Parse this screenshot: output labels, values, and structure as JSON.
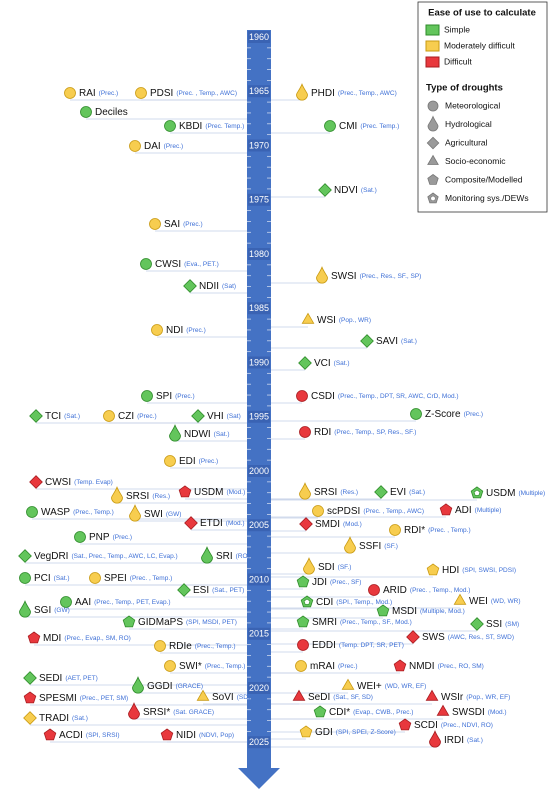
{
  "legend": {
    "ease_title": "Ease of use to calculate",
    "ease": [
      "Simple",
      "Moderately difficult",
      "Difficult"
    ],
    "type_title": "Type of droughts",
    "types": [
      "Meteorological",
      "Hydrological",
      "Agricultural",
      "Socio-economic",
      "Composite/Modelled",
      "Monitoring sys./DEWs"
    ]
  },
  "timeline": {
    "years": [
      1960,
      1965,
      1970,
      1975,
      1980,
      1985,
      1990,
      1995,
      2000,
      2005,
      2010,
      2015,
      2020,
      2025
    ]
  },
  "indices": [
    {
      "name": "RAI",
      "inputs": "(Prec.)",
      "ease": "Moderately difficult",
      "type": "Meteorological"
    },
    {
      "name": "PDSI",
      "inputs": "(Prec. , Temp., AWC)",
      "ease": "Moderately difficult",
      "type": "Meteorological"
    },
    {
      "name": "Deciles",
      "ease": "Simple",
      "type": "Meteorological"
    },
    {
      "name": "KBDI",
      "inputs": "(Prec. Temp.)",
      "ease": "Simple",
      "type": "Meteorological"
    },
    {
      "name": "DAI",
      "inputs": "(Prec.)",
      "ease": "Moderately difficult",
      "type": "Meteorological"
    },
    {
      "name": "SAI",
      "inputs": "(Prec.)",
      "ease": "Moderately difficult",
      "type": "Meteorological"
    },
    {
      "name": "CWSI",
      "inputs": "(Eva., PET.)",
      "ease": "Simple",
      "type": "Meteorological"
    },
    {
      "name": "NDII",
      "inputs": "(Sat)",
      "ease": "Simple",
      "type": "Agricultural"
    },
    {
      "name": "NDI",
      "inputs": "(Prec.)",
      "ease": "Moderately difficult",
      "type": "Meteorological"
    },
    {
      "name": "SPI",
      "inputs": "(Prec.)",
      "ease": "Simple",
      "type": "Meteorological"
    },
    {
      "name": "TCI",
      "inputs": "(Sat.)",
      "ease": "Simple",
      "type": "Agricultural"
    },
    {
      "name": "CZI",
      "inputs": "(Prec.)",
      "ease": "Moderately difficult",
      "type": "Meteorological"
    },
    {
      "name": "VHI",
      "inputs": "(Sat)",
      "ease": "Simple",
      "type": "Agricultural"
    },
    {
      "name": "NDWI",
      "inputs": "(Sat.)",
      "ease": "Simple",
      "type": "Hydrological"
    },
    {
      "name": "EDI",
      "inputs": "(Prec.)",
      "ease": "Moderately difficult",
      "type": "Meteorological"
    },
    {
      "name": "CWSI",
      "inputs": "(Temp. Evap)",
      "ease": "Difficult",
      "type": "Agricultural"
    },
    {
      "name": "SRSI",
      "inputs": "(Res.)",
      "ease": "Moderately difficult",
      "type": "Hydrological"
    },
    {
      "name": "USDM",
      "inputs": "(Mod.)",
      "ease": "Difficult",
      "type": "Composite/Modelled"
    },
    {
      "name": "WASP",
      "inputs": "(Prec., Temp.)",
      "ease": "Simple",
      "type": "Meteorological"
    },
    {
      "name": "SWI",
      "inputs": "(GW)",
      "ease": "Moderately difficult",
      "type": "Hydrological"
    },
    {
      "name": "ETDI",
      "inputs": "(Mod.)",
      "ease": "Difficult",
      "type": "Agricultural"
    },
    {
      "name": "PNP",
      "inputs": "(Prec.)",
      "ease": "Simple",
      "type": "Meteorological"
    },
    {
      "name": "VegDRI",
      "inputs": "(Sat., Prec., Temp., AWC, LC, Evap.)",
      "ease": "Simple",
      "type": "Agricultural"
    },
    {
      "name": "SRI",
      "inputs": "(RO)",
      "ease": "Simple",
      "type": "Hydrological"
    },
    {
      "name": "PCI",
      "inputs": "(Sat.)",
      "ease": "Simple",
      "type": "Meteorological"
    },
    {
      "name": "SPEI",
      "inputs": "(Prec. , Temp.)",
      "ease": "Moderately difficult",
      "type": "Meteorological"
    },
    {
      "name": "ESI",
      "inputs": "(Sat., PET)",
      "ease": "Simple",
      "type": "Agricultural"
    },
    {
      "name": "AAI",
      "inputs": "(Prec., Temp., PET, Evap.)",
      "ease": "Simple",
      "type": "Meteorological"
    },
    {
      "name": "SGI",
      "inputs": "(GW)",
      "ease": "Simple",
      "type": "Hydrological"
    },
    {
      "name": "GIDMaPS",
      "inputs": "(SPI, MSDI, PET)",
      "ease": "Simple",
      "type": "Composite/Modelled"
    },
    {
      "name": "MDI",
      "inputs": "(Prec., Evap., SM, RO)",
      "ease": "Difficult",
      "type": "Composite/Modelled"
    },
    {
      "name": "RDIe",
      "inputs": "(Prec., Temp.)",
      "ease": "Moderately difficult",
      "type": "Meteorological"
    },
    {
      "name": "SWI*",
      "inputs": "(Prec., Temp.)",
      "ease": "Moderately difficult",
      "type": "Meteorological"
    },
    {
      "name": "SEDI",
      "inputs": "(AET, PET)",
      "ease": "Simple",
      "type": "Agricultural"
    },
    {
      "name": "GGDI",
      "inputs": "(GRACE)",
      "ease": "Simple",
      "type": "Hydrological"
    },
    {
      "name": "SPESMI",
      "inputs": "(Prec., PET, SM)",
      "ease": "Difficult",
      "type": "Composite/Modelled"
    },
    {
      "name": "SoVI",
      "inputs": "(SD)",
      "ease": "Moderately difficult",
      "type": "Socio-economic"
    },
    {
      "name": "SRSI*",
      "inputs": "(Sat. GRACE)",
      "ease": "Difficult",
      "type": "Hydrological"
    },
    {
      "name": "TRADI",
      "inputs": "(Sat.)",
      "ease": "Moderately difficult",
      "type": "Agricultural"
    },
    {
      "name": "ACDI",
      "inputs": "(SPI, SRSI)",
      "ease": "Difficult",
      "type": "Composite/Modelled"
    },
    {
      "name": "NIDI",
      "inputs": "(NDVI, Pop)",
      "ease": "Difficult",
      "type": "Composite/Modelled"
    },
    {
      "name": "PHDI",
      "inputs": "(Prec., Temp., AWC)",
      "ease": "Moderately difficult",
      "type": "Hydrological"
    },
    {
      "name": "CMI",
      "inputs": "(Prec. Temp.)",
      "ease": "Simple",
      "type": "Meteorological"
    },
    {
      "name": "NDVI",
      "inputs": "(Sat.)",
      "ease": "Simple",
      "type": "Agricultural"
    },
    {
      "name": "SWSI",
      "inputs": "(Prec., Res., SF., SP)",
      "ease": "Moderately difficult",
      "type": "Hydrological"
    },
    {
      "name": "WSI",
      "inputs": "(Pop., WR)",
      "ease": "Moderately difficult",
      "type": "Socio-economic"
    },
    {
      "name": "SAVI",
      "inputs": "(Sat.)",
      "ease": "Simple",
      "type": "Agricultural"
    },
    {
      "name": "VCI",
      "inputs": "(Sat.)",
      "ease": "Simple",
      "type": "Agricultural"
    },
    {
      "name": "CSDI",
      "inputs": "(Prec., Temp., DPT, SR, AWC, CrD, Mod.)",
      "ease": "Difficult",
      "type": "Meteorological"
    },
    {
      "name": "Z-Score",
      "inputs": "(Prec.)",
      "ease": "Simple",
      "type": "Meteorological"
    },
    {
      "name": "RDI",
      "inputs": "(Prec., Temp., SP, Res., SF.)",
      "ease": "Difficult",
      "type": "Meteorological"
    },
    {
      "name": "SRSI",
      "inputs": "(Res.)",
      "ease": "Moderately difficult",
      "type": "Hydrological"
    },
    {
      "name": "EVI",
      "inputs": "(Sat.)",
      "ease": "Simple",
      "type": "Agricultural"
    },
    {
      "name": "USDM",
      "inputs": "(Multiple)",
      "ease": "Simple",
      "type": "Monitoring sys./DEWs"
    },
    {
      "name": "scPDSI",
      "inputs": "(Prec. , Temp., AWC)",
      "ease": "Moderately difficult",
      "type": "Meteorological"
    },
    {
      "name": "ADI",
      "inputs": "(Multiple)",
      "ease": "Difficult",
      "type": "Composite/Modelled"
    },
    {
      "name": "SMDI",
      "inputs": "(Mod.)",
      "ease": "Difficult",
      "type": "Agricultural"
    },
    {
      "name": "RDI*",
      "inputs": "(Prec. , Temp.)",
      "ease": "Moderately difficult",
      "type": "Meteorological"
    },
    {
      "name": "SSFI",
      "inputs": "(SF.)",
      "ease": "Moderately difficult",
      "type": "Hydrological"
    },
    {
      "name": "SDI",
      "inputs": "(SF.)",
      "ease": "Moderately difficult",
      "type": "Hydrological"
    },
    {
      "name": "HDI",
      "inputs": "(SPI, SWSI, PDSI)",
      "ease": "Moderately difficult",
      "type": "Composite/Modelled"
    },
    {
      "name": "JDI",
      "inputs": "(Prec., SF)",
      "ease": "Simple",
      "type": "Composite/Modelled"
    },
    {
      "name": "ARID",
      "inputs": "(Prec. , Temp., Mod.)",
      "ease": "Difficult",
      "type": "Meteorological"
    },
    {
      "name": "CDI",
      "inputs": "(SPI., Temp., Mod.)",
      "ease": "Simple",
      "type": "Monitoring sys./DEWs"
    },
    {
      "name": "WEI",
      "inputs": "(WD, WR)",
      "ease": "Moderately difficult",
      "type": "Socio-economic"
    },
    {
      "name": "MSDI",
      "inputs": "(Multiple, Mod.)",
      "ease": "Simple",
      "type": "Composite/Modelled"
    },
    {
      "name": "SMRI",
      "inputs": "(Prec., Temp., SF., Mod.)",
      "ease": "Simple",
      "type": "Composite/Modelled"
    },
    {
      "name": "SSI",
      "inputs": "(SM)",
      "ease": "Simple",
      "type": "Agricultural"
    },
    {
      "name": "EDDI",
      "inputs": "(Temp. DPT, SR, PET)",
      "ease": "Difficult",
      "type": "Meteorological"
    },
    {
      "name": "SWS",
      "inputs": "(AWC, Res., ST, SWD)",
      "ease": "Difficult",
      "type": "Agricultural"
    },
    {
      "name": "mRAI",
      "inputs": "(Prec.)",
      "ease": "Moderately difficult",
      "type": "Meteorological"
    },
    {
      "name": "NMDI",
      "inputs": "(Prec., RO, SM)",
      "ease": "Difficult",
      "type": "Composite/Modelled"
    },
    {
      "name": "WEI+",
      "inputs": "(WD, WR, EF)",
      "ease": "Moderately difficult",
      "type": "Socio-economic"
    },
    {
      "name": "SeDI",
      "inputs": "(Sat., SF, SD)",
      "ease": "Difficult",
      "type": "Socio-economic"
    },
    {
      "name": "WSIr",
      "inputs": "(Pop., WR, EF)",
      "ease": "Difficult",
      "type": "Socio-economic"
    },
    {
      "name": "CDI*",
      "inputs": "(Evap., CWB., Prec.)",
      "ease": "Simple",
      "type": "Composite/Modelled"
    },
    {
      "name": "SWSDI",
      "inputs": "(Mod.)",
      "ease": "Difficult",
      "type": "Socio-economic"
    },
    {
      "name": "SCDI",
      "inputs": "(Prec., NDVI, RO)",
      "ease": "Difficult",
      "type": "Composite/Modelled"
    },
    {
      "name": "GDI",
      "inputs": "(SPI, SPEI, Z-Score)",
      "ease": "Moderately difficult",
      "type": "Composite/Modelled"
    },
    {
      "name": "IRDI",
      "inputs": "(Sat.)",
      "ease": "Difficult",
      "type": "Hydrological"
    }
  ]
}
